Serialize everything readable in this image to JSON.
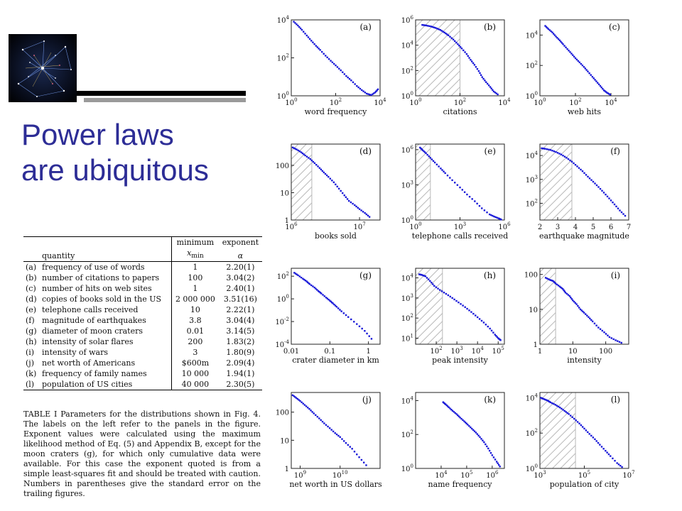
{
  "slide": {
    "title_lines": [
      "Power laws",
      "are ubiquitous"
    ]
  },
  "colors": {
    "title": "#2d2d96",
    "points": "#1a1ad8",
    "hatch": "#b8b8b8"
  },
  "table": {
    "headers": {
      "quantity": "quantity",
      "minimum": "minimum",
      "xmin": "x",
      "xmin_sub": "min",
      "exponent": "exponent",
      "alpha": "α"
    },
    "rows": [
      {
        "label": "(a)",
        "quantity": "frequency of use of words",
        "xmin": "1",
        "alpha": "2.20(1)"
      },
      {
        "label": "(b)",
        "quantity": "number of citations to papers",
        "xmin": "100",
        "alpha": "3.04(2)"
      },
      {
        "label": "(c)",
        "quantity": "number of hits on web sites",
        "xmin": "1",
        "alpha": "2.40(1)"
      },
      {
        "label": "(d)",
        "quantity": "copies of books sold in the US",
        "xmin": "2 000 000",
        "alpha": "3.51(16)"
      },
      {
        "label": "(e)",
        "quantity": "telephone calls received",
        "xmin": "10",
        "alpha": "2.22(1)"
      },
      {
        "label": "(f)",
        "quantity": "magnitude of earthquakes",
        "xmin": "3.8",
        "alpha": "3.04(4)"
      },
      {
        "label": "(g)",
        "quantity": "diameter of moon craters",
        "xmin": "0.01",
        "alpha": "3.14(5)"
      },
      {
        "label": "(h)",
        "quantity": "intensity of solar flares",
        "xmin": "200",
        "alpha": "1.83(2)"
      },
      {
        "label": "(i)",
        "quantity": "intensity of wars",
        "xmin": "3",
        "alpha": "1.80(9)"
      },
      {
        "label": "(j)",
        "quantity": "net worth of Americans",
        "xmin": "$600m",
        "alpha": "2.09(4)"
      },
      {
        "label": "(k)",
        "quantity": "frequency of family names",
        "xmin": "10 000",
        "alpha": "1.94(1)"
      },
      {
        "label": "(l)",
        "quantity": "population of US cities",
        "xmin": "40 000",
        "alpha": "2.30(5)"
      }
    ],
    "caption": "TABLE I Parameters for the distributions shown in Fig. 4. The labels on the left refer to the panels in the figure. Exponent values were calculated using the maximum likelihood method of Eq. (5) and Appendix B, except for the moon craters (g), for which only cumulative data were available. For this case the exponent quoted is from a simple least-squares fit and should be treated with caution. Numbers in parentheses give the standard error on the trailing figures."
  },
  "chart_data": [
    {
      "type": "scatter",
      "label": "(a)",
      "xlabel": "word frequency",
      "xscale": "log",
      "yscale": "log",
      "xlim": [
        1,
        10000
      ],
      "ylim": [
        1,
        10000
      ],
      "xticks": [
        {
          "base": "10",
          "exp": "0",
          "v": 1
        },
        {
          "base": "10",
          "exp": "2",
          "v": 100
        },
        {
          "base": "10",
          "exp": "4",
          "v": 10000
        }
      ],
      "yticks": [
        {
          "base": "10",
          "exp": "0",
          "v": 1
        },
        {
          "base": "10",
          "exp": "2",
          "v": 100
        },
        {
          "base": "10",
          "exp": "4",
          "v": 10000
        }
      ],
      "x": [
        1.3,
        2,
        3,
        5,
        8,
        13,
        20,
        35,
        60,
        100,
        170,
        300,
        500,
        900,
        1500,
        2500,
        4000,
        6000,
        8000
      ],
      "y": [
        8000,
        5000,
        3000,
        1500,
        800,
        430,
        260,
        130,
        70,
        40,
        22,
        11,
        6.5,
        3.3,
        2,
        1.3,
        1.1,
        1.5,
        2.2
      ]
    },
    {
      "type": "scatter",
      "label": "(b)",
      "xlabel": "citations",
      "xscale": "log",
      "yscale": "log",
      "xlim": [
        1,
        10000
      ],
      "ylim": [
        1,
        1000000
      ],
      "xmin_shade": 100,
      "xticks": [
        {
          "base": "10",
          "exp": "0",
          "v": 1
        },
        {
          "base": "10",
          "exp": "2",
          "v": 100
        },
        {
          "base": "10",
          "exp": "4",
          "v": 10000
        }
      ],
      "yticks": [
        {
          "base": "10",
          "exp": "0",
          "v": 1
        },
        {
          "base": "10",
          "exp": "2",
          "v": 100
        },
        {
          "base": "10",
          "exp": "4",
          "v": 10000
        },
        {
          "base": "10",
          "exp": "6",
          "v": 1000000
        }
      ],
      "x": [
        2,
        3,
        5,
        8,
        13,
        20,
        30,
        50,
        80,
        120,
        200,
        300,
        450,
        700,
        1000,
        1500,
        2300,
        3300,
        5000
      ],
      "y": [
        400000,
        360000,
        300000,
        230000,
        160000,
        100000,
        60000,
        28000,
        12000,
        5500,
        2000,
        700,
        280,
        90,
        30,
        12,
        5,
        2.2,
        1.3
      ]
    },
    {
      "type": "scatter",
      "label": "(c)",
      "xlabel": "web hits",
      "xscale": "log",
      "yscale": "log",
      "xlim": [
        1,
        100000
      ],
      "ylim": [
        1,
        100000
      ],
      "xticks": [
        {
          "base": "10",
          "exp": "0",
          "v": 1
        },
        {
          "base": "10",
          "exp": "2",
          "v": 100
        },
        {
          "base": "10",
          "exp": "4",
          "v": 10000
        }
      ],
      "yticks": [
        {
          "base": "10",
          "exp": "0",
          "v": 1
        },
        {
          "base": "10",
          "exp": "2",
          "v": 100
        },
        {
          "base": "10",
          "exp": "4",
          "v": 10000
        }
      ],
      "x": [
        2,
        3,
        5,
        8,
        13,
        20,
        35,
        60,
        100,
        170,
        300,
        500,
        900,
        1500,
        2500,
        4000,
        6000,
        9000
      ],
      "y": [
        40000,
        25000,
        15000,
        8000,
        4500,
        2500,
        1200,
        600,
        300,
        160,
        80,
        40,
        18,
        9,
        4.5,
        2.3,
        1.6,
        1.2
      ]
    },
    {
      "type": "scatter",
      "label": "(d)",
      "xlabel": "books sold",
      "xscale": "log",
      "yscale": "log",
      "xlim": [
        1000000,
        20000000
      ],
      "ylim": [
        1,
        600
      ],
      "xmin_shade": 2000000,
      "xticks": [
        {
          "base": "10",
          "exp": "6",
          "v": 1000000
        },
        {
          "base": "10",
          "exp": "7",
          "v": 10000000
        }
      ],
      "yticks": [
        {
          "base": "1",
          "exp": "",
          "v": 1
        },
        {
          "base": "10",
          "exp": "",
          "v": 10
        },
        {
          "base": "100",
          "exp": "",
          "v": 100
        }
      ],
      "x": [
        1050000,
        1200000,
        1400000,
        1600000,
        1900000,
        2200000,
        2600000,
        3000000,
        3500000,
        4200000,
        5000000,
        6000000,
        7000000,
        8500000,
        10000000,
        12000000,
        14000000
      ],
      "y": [
        450,
        380,
        300,
        230,
        170,
        120,
        80,
        55,
        38,
        24,
        14,
        8,
        5,
        3.5,
        2.5,
        1.8,
        1.3
      ]
    },
    {
      "type": "scatter",
      "label": "(e)",
      "xlabel": "telephone calls received",
      "xscale": "log",
      "yscale": "log",
      "xlim": [
        1,
        1000000
      ],
      "ylim": [
        1,
        3000000
      ],
      "xmin_shade": 10,
      "xticks": [
        {
          "base": "10",
          "exp": "0",
          "v": 1
        },
        {
          "base": "10",
          "exp": "3",
          "v": 1000
        },
        {
          "base": "10",
          "exp": "6",
          "v": 1000000
        }
      ],
      "yticks": [
        {
          "base": "10",
          "exp": "0",
          "v": 1
        },
        {
          "base": "10",
          "exp": "3",
          "v": 1000
        },
        {
          "base": "10",
          "exp": "6",
          "v": 1000000
        }
      ],
      "x": [
        2,
        3,
        5,
        10,
        20,
        50,
        100,
        300,
        1000,
        3000,
        10000,
        30000,
        100000,
        200000,
        400000,
        600000
      ],
      "y": [
        1500000,
        900000,
        500000,
        200000,
        80000,
        25000,
        10000,
        2500,
        600,
        150,
        40,
        10,
        3,
        2,
        1.4,
        1.1
      ]
    },
    {
      "type": "scatter",
      "label": "(f)",
      "xlabel": "earthquake magnitude",
      "xscale": "linear",
      "yscale": "log",
      "xlim": [
        2,
        7
      ],
      "ylim": [
        20,
        30000
      ],
      "xmin_shade": 3.8,
      "xticks": [
        {
          "base": "2",
          "exp": "",
          "v": 2
        },
        {
          "base": "3",
          "exp": "",
          "v": 3
        },
        {
          "base": "4",
          "exp": "",
          "v": 4
        },
        {
          "base": "5",
          "exp": "",
          "v": 5
        },
        {
          "base": "6",
          "exp": "",
          "v": 6
        },
        {
          "base": "7",
          "exp": "",
          "v": 7
        }
      ],
      "yticks": [
        {
          "base": "10",
          "exp": "2",
          "v": 100
        },
        {
          "base": "10",
          "exp": "3",
          "v": 1000
        },
        {
          "base": "10",
          "exp": "4",
          "v": 10000
        }
      ],
      "x": [
        2.1,
        2.3,
        2.6,
        2.9,
        3.2,
        3.5,
        3.8,
        4.1,
        4.4,
        4.7,
        5.0,
        5.3,
        5.6,
        5.9,
        6.2,
        6.5,
        6.8
      ],
      "y": [
        20000,
        19000,
        17000,
        14000,
        11000,
        8000,
        5500,
        3500,
        2200,
        1300,
        800,
        480,
        280,
        160,
        90,
        50,
        30
      ]
    },
    {
      "type": "scatter",
      "label": "(g)",
      "xlabel": "crater diameter in km",
      "xscale": "log",
      "yscale": "log",
      "xlim": [
        0.01,
        2
      ],
      "ylim": [
        0.0001,
        500
      ],
      "xticks": [
        {
          "base": "0.01",
          "exp": "",
          "v": 0.01
        },
        {
          "base": "0.1",
          "exp": "",
          "v": 0.1
        },
        {
          "base": "1",
          "exp": "",
          "v": 1
        }
      ],
      "yticks": [
        {
          "base": "10",
          "exp": "-4",
          "v": 0.0001
        },
        {
          "base": "10",
          "exp": "-2",
          "v": 0.01
        },
        {
          "base": "10",
          "exp": "0",
          "v": 1
        },
        {
          "base": "10",
          "exp": "2",
          "v": 100
        }
      ],
      "x": [
        0.012,
        0.015,
        0.02,
        0.025,
        0.03,
        0.04,
        0.05,
        0.06,
        0.08,
        0.1,
        0.12,
        0.15,
        0.2,
        0.3,
        0.5,
        0.8,
        1.2
      ],
      "y": [
        200,
        120,
        60,
        35,
        20,
        10,
        5,
        3,
        1.3,
        0.7,
        0.4,
        0.2,
        0.08,
        0.025,
        0.006,
        0.0015,
        0.0003
      ]
    },
    {
      "type": "scatter",
      "label": "(h)",
      "xlabel": "peak intensity",
      "xscale": "log",
      "yscale": "log",
      "xlim": [
        10,
        200000
      ],
      "ylim": [
        5,
        30000
      ],
      "xmin_shade": 200,
      "xticks": [
        {
          "base": "10",
          "exp": "2",
          "v": 100
        },
        {
          "base": "10",
          "exp": "3",
          "v": 1000
        },
        {
          "base": "10",
          "exp": "4",
          "v": 10000
        },
        {
          "base": "10",
          "exp": "5",
          "v": 100000
        }
      ],
      "yticks": [
        {
          "base": "10",
          "exp": "1",
          "v": 10
        },
        {
          "base": "10",
          "exp": "2",
          "v": 100
        },
        {
          "base": "10",
          "exp": "3",
          "v": 1000
        },
        {
          "base": "10",
          "exp": "4",
          "v": 10000
        }
      ],
      "x": [
        15,
        20,
        30,
        50,
        80,
        150,
        300,
        600,
        1200,
        2500,
        5000,
        10000,
        20000,
        40000,
        70000,
        100000,
        130000
      ],
      "y": [
        15000,
        14000,
        12000,
        7000,
        4000,
        2500,
        1600,
        1000,
        600,
        350,
        200,
        110,
        60,
        30,
        15,
        10,
        8
      ]
    },
    {
      "type": "scatter",
      "label": "(i)",
      "xlabel": "intensity",
      "xscale": "log",
      "yscale": "log",
      "xlim": [
        1,
        500
      ],
      "ylim": [
        1,
        150
      ],
      "xmin_shade": 3,
      "xticks": [
        {
          "base": "1",
          "exp": "",
          "v": 1
        },
        {
          "base": "10",
          "exp": "",
          "v": 10
        },
        {
          "base": "100",
          "exp": "",
          "v": 100
        }
      ],
      "yticks": [
        {
          "base": "1",
          "exp": "",
          "v": 1
        },
        {
          "base": "10",
          "exp": "",
          "v": 10
        },
        {
          "base": "100",
          "exp": "",
          "v": 100
        }
      ],
      "x": [
        1.5,
        2,
        2.5,
        3,
        4,
        5,
        6,
        8,
        10,
        13,
        17,
        22,
        30,
        40,
        60,
        90,
        130,
        200,
        300
      ],
      "y": [
        80,
        70,
        65,
        55,
        45,
        38,
        30,
        24,
        18,
        14,
        10,
        8,
        6,
        4.5,
        3,
        2.2,
        1.6,
        1.3,
        1.1
      ]
    },
    {
      "type": "scatter",
      "label": "(j)",
      "xlabel": "net worth in US dollars",
      "xscale": "log",
      "yscale": "log",
      "xlim": [
        600000000,
        100000000000
      ],
      "ylim": [
        1,
        500
      ],
      "xticks": [
        {
          "base": "10",
          "exp": "9",
          "v": 1000000000
        },
        {
          "base": "10",
          "exp": "10",
          "v": 10000000000
        }
      ],
      "yticks": [
        {
          "base": "1",
          "exp": "",
          "v": 1
        },
        {
          "base": "10",
          "exp": "",
          "v": 10
        },
        {
          "base": "100",
          "exp": "",
          "v": 100
        }
      ],
      "x": [
        650000000,
        800000000,
        1000000000,
        1300000000,
        1700000000,
        2200000000,
        3000000000,
        4000000000,
        5500000000,
        7500000000,
        10000000000,
        14000000000,
        20000000000,
        30000000000,
        45000000000
      ],
      "y": [
        400,
        320,
        250,
        180,
        130,
        90,
        60,
        40,
        27,
        18,
        13,
        8,
        5,
        2.5,
        1.3
      ]
    },
    {
      "type": "scatter",
      "label": "(k)",
      "xlabel": "name frequency",
      "xscale": "log",
      "yscale": "log",
      "xlim": [
        1000,
        3000000
      ],
      "ylim": [
        1,
        30000
      ],
      "xticks": [
        {
          "base": "10",
          "exp": "4",
          "v": 10000
        },
        {
          "base": "10",
          "exp": "5",
          "v": 100000
        },
        {
          "base": "10",
          "exp": "6",
          "v": 1000000
        }
      ],
      "yticks": [
        {
          "base": "10",
          "exp": "0",
          "v": 1
        },
        {
          "base": "10",
          "exp": "2",
          "v": 100
        },
        {
          "base": "10",
          "exp": "4",
          "v": 10000
        }
      ],
      "x": [
        12000,
        15000,
        20000,
        28000,
        40000,
        55000,
        80000,
        110000,
        160000,
        230000,
        330000,
        480000,
        700000,
        1000000,
        1500000,
        2000000
      ],
      "y": [
        8000,
        6000,
        4000,
        2500,
        1600,
        1000,
        600,
        380,
        220,
        130,
        70,
        35,
        15,
        6,
        2.5,
        1.3
      ]
    },
    {
      "type": "scatter",
      "label": "(l)",
      "xlabel": "population of city",
      "xscale": "log",
      "yscale": "log",
      "xlim": [
        1000,
        10000000
      ],
      "ylim": [
        1,
        20000
      ],
      "xmin_shade": 40000,
      "xticks": [
        {
          "base": "10",
          "exp": "3",
          "v": 1000
        },
        {
          "base": "10",
          "exp": "5",
          "v": 100000
        },
        {
          "base": "10",
          "exp": "7",
          "v": 10000000
        }
      ],
      "yticks": [
        {
          "base": "10",
          "exp": "0",
          "v": 1
        },
        {
          "base": "10",
          "exp": "2",
          "v": 100
        },
        {
          "base": "10",
          "exp": "4",
          "v": 10000
        }
      ],
      "x": [
        1100,
        1500,
        2200,
        3000,
        5000,
        8000,
        13000,
        20000,
        35000,
        60000,
        100000,
        170000,
        300000,
        500000,
        900000,
        1500000,
        3000000,
        5000000
      ],
      "y": [
        10000,
        8500,
        7000,
        5500,
        4000,
        2800,
        1800,
        1200,
        650,
        350,
        180,
        90,
        45,
        22,
        10,
        5,
        2,
        1.2
      ]
    }
  ]
}
